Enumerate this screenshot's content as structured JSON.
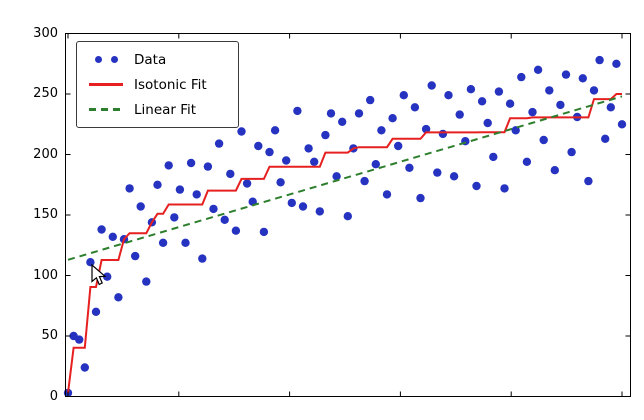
{
  "window": {
    "background": "#ffffff"
  },
  "icons": {
    "mouse_cursor": "arrow-pointer"
  },
  "chart_data": {
    "type": "scatter",
    "title": "",
    "xlabel": "",
    "ylabel": "",
    "xlim": [
      0,
      100
    ],
    "ylim": [
      0,
      300
    ],
    "yticks": [
      0,
      50,
      100,
      150,
      200,
      250,
      300
    ],
    "xticks": [
      0,
      20,
      40,
      60,
      80,
      100
    ],
    "grid": false,
    "legend": {
      "position": "upper-left",
      "entries": [
        {
          "label": "Data",
          "marker": "blue-dots",
          "color": "#2633c0"
        },
        {
          "label": "Isotonic Fit",
          "marker": "solid-line",
          "color": "#e62020"
        },
        {
          "label": "Linear Fit",
          "marker": "dashed-line",
          "color": "#2d7f2d"
        }
      ]
    },
    "x": [
      0,
      1,
      2,
      3,
      4,
      5,
      6,
      7,
      8,
      9,
      10,
      11,
      12,
      13,
      14,
      15,
      16,
      17,
      18,
      19,
      20,
      21,
      22,
      23,
      24,
      25,
      26,
      27,
      28,
      29,
      30,
      31,
      32,
      33,
      34,
      35,
      36,
      37,
      38,
      39,
      40,
      41,
      42,
      43,
      44,
      45,
      46,
      47,
      48,
      49,
      50,
      51,
      52,
      53,
      54,
      55,
      56,
      57,
      58,
      59,
      60,
      61,
      62,
      63,
      64,
      65,
      66,
      67,
      68,
      69,
      70,
      71,
      72,
      73,
      74,
      75,
      76,
      77,
      78,
      79,
      80,
      81,
      82,
      83,
      84,
      85,
      86,
      87,
      88,
      89,
      90,
      91,
      92,
      93,
      94,
      95,
      96,
      97,
      98,
      99
    ],
    "series": [
      {
        "name": "Data",
        "type": "scatter",
        "color": "#2633c0",
        "values": [
          3,
          50,
          47,
          24,
          111,
          70,
          138,
          99,
          132,
          82,
          130,
          172,
          116,
          157,
          95,
          144,
          175,
          127,
          191,
          148,
          171,
          127,
          193,
          167,
          114,
          190,
          155,
          209,
          146,
          184,
          137,
          219,
          176,
          161,
          207,
          136,
          202,
          220,
          177,
          195,
          160,
          236,
          157,
          205,
          194,
          153,
          216,
          234,
          182,
          227,
          149,
          205,
          234,
          178,
          245,
          192,
          220,
          167,
          230,
          207,
          249,
          189,
          239,
          164,
          221,
          257,
          185,
          217,
          249,
          182,
          233,
          211,
          254,
          174,
          244,
          226,
          198,
          252,
          172,
          242,
          220,
          264,
          194,
          235,
          270,
          212,
          253,
          187,
          241,
          266,
          202,
          231,
          263,
          178,
          253,
          278,
          213,
          239,
          275,
          225
        ]
      },
      {
        "name": "Isotonic Fit",
        "type": "line",
        "style": "solid",
        "color": "#e62020",
        "values": [
          3,
          40.3,
          40.3,
          40.3,
          90.5,
          90.5,
          112.8,
          112.8,
          112.8,
          112.8,
          130,
          135,
          135,
          135,
          135,
          144,
          151,
          151,
          158.7,
          158.7,
          158.7,
          158.7,
          158.7,
          158.7,
          158.7,
          170.2,
          170.2,
          170.2,
          170.2,
          170.2,
          170.2,
          179.8,
          179.8,
          179.8,
          179.8,
          179.8,
          189.9,
          189.9,
          189.9,
          189.9,
          189.9,
          189.9,
          189.9,
          189.9,
          189.9,
          189.9,
          201.6,
          201.6,
          201.6,
          201.6,
          201.6,
          205,
          206,
          206,
          206,
          206,
          206,
          206,
          213,
          213,
          213,
          213,
          213,
          213,
          218.3,
          218.3,
          218.3,
          218.3,
          218.3,
          218.3,
          218.3,
          218.3,
          218.3,
          218.3,
          218.4,
          218.4,
          218.4,
          218.4,
          218.4,
          230,
          230,
          230,
          230,
          230.7,
          230.7,
          230.7,
          230.7,
          230.7,
          230.7,
          230.7,
          230.7,
          230.7,
          230.7,
          230.7,
          245.8,
          245.8,
          245.8,
          245.8,
          250,
          250
        ]
      },
      {
        "name": "Linear Fit",
        "type": "line",
        "style": "dashed",
        "color": "#2d7f2d",
        "x": [
          0,
          99
        ],
        "values": [
          113,
          248
        ]
      }
    ]
  }
}
